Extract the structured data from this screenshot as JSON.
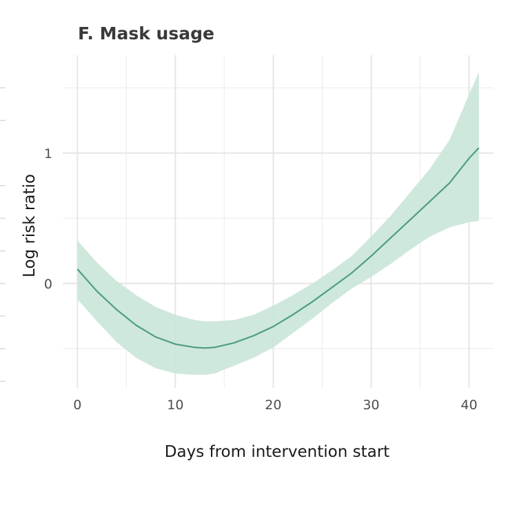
{
  "chart_data": {
    "type": "line",
    "title": "F. Mask usage",
    "xlabel": "Days from intervention start",
    "ylabel": "Log risk ratio",
    "xlim": [
      -1.5,
      42.5
    ],
    "ylim": [
      -0.8,
      1.75
    ],
    "x_ticks": [
      0,
      10,
      20,
      30,
      40
    ],
    "x_tick_labels": [
      "0",
      "10",
      "20",
      "30",
      "40"
    ],
    "x_minor_ticks": [
      5,
      15,
      25,
      35
    ],
    "y_ticks": [
      0,
      1
    ],
    "y_tick_labels": [
      "0",
      "1"
    ],
    "y_minor_ticks": [
      -0.5,
      0.5,
      1.5
    ],
    "grid": true,
    "legend": "none",
    "colors": {
      "line": "#4e9e80",
      "band": "#c9e5d8"
    },
    "series": [
      {
        "x": [
          0,
          2,
          4,
          6,
          8,
          10,
          12,
          13,
          14,
          16,
          18,
          20,
          22,
          24,
          26,
          28,
          30,
          32,
          34,
          36,
          38,
          40,
          41
        ],
        "y": [
          0.11,
          -0.06,
          -0.2,
          -0.32,
          -0.41,
          -0.465,
          -0.49,
          -0.495,
          -0.49,
          -0.455,
          -0.4,
          -0.33,
          -0.24,
          -0.14,
          -0.03,
          0.08,
          0.21,
          0.35,
          0.49,
          0.63,
          0.77,
          0.96,
          1.04
        ],
        "lower": [
          -0.12,
          -0.29,
          -0.45,
          -0.57,
          -0.65,
          -0.69,
          -0.7,
          -0.7,
          -0.69,
          -0.63,
          -0.57,
          -0.49,
          -0.38,
          -0.27,
          -0.15,
          -0.04,
          0.05,
          0.15,
          0.26,
          0.36,
          0.43,
          0.47,
          0.48
        ],
        "upper": [
          0.33,
          0.16,
          0.02,
          -0.09,
          -0.18,
          -0.24,
          -0.28,
          -0.29,
          -0.29,
          -0.28,
          -0.24,
          -0.17,
          -0.09,
          0.0,
          0.1,
          0.21,
          0.36,
          0.52,
          0.7,
          0.88,
          1.1,
          1.45,
          1.62
        ]
      }
    ]
  }
}
